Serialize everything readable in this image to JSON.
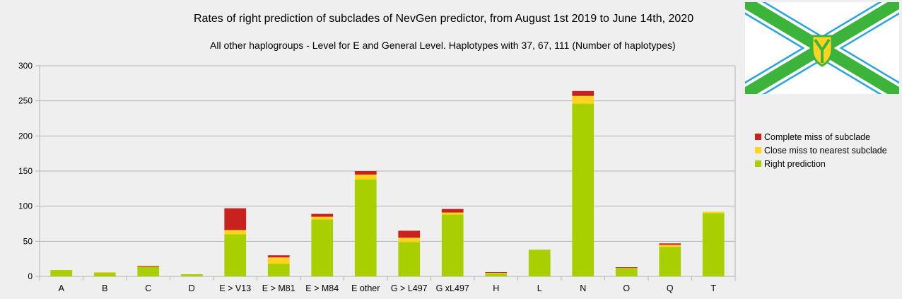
{
  "title": "Rates of right prediction of subclades of NevGen predictor, from August 1st 2019 to June 14th, 2020",
  "subtitle": "All other haplogroups - Level for E and General Level. Haplotypes with 37, 67, 111 (Number of haplotypes)",
  "colors": {
    "right": "#a9cf00",
    "close": "#ffd320",
    "miss": "#c9211e",
    "flag_green": "#3cb43c",
    "flag_blue": "#29a3e6",
    "flag_yellow": "#ffd320"
  },
  "chart_data": {
    "type": "bar",
    "stacked": true,
    "categories": [
      "A",
      "B",
      "C",
      "D",
      "E > V13",
      "E > M81",
      "E > M84",
      "E other",
      "G > L497",
      "G xL497",
      "H",
      "L",
      "N",
      "O",
      "Q",
      "T"
    ],
    "series": [
      {
        "name": "Right prediction",
        "values": [
          9,
          5,
          14,
          3,
          60,
          18,
          81,
          138,
          49,
          88,
          4,
          38,
          246,
          12,
          42,
          90
        ]
      },
      {
        "name": "Close miss to nearest subclade",
        "values": [
          0,
          1,
          0,
          0,
          6,
          9,
          4,
          7,
          6,
          3,
          1,
          0,
          11,
          0,
          3,
          2
        ]
      },
      {
        "name": "Complete miss of subclade",
        "values": [
          0,
          0,
          1,
          0,
          31,
          3,
          4,
          5,
          10,
          5,
          1,
          0,
          7,
          1,
          2,
          0
        ]
      }
    ],
    "yticks": [
      0,
      50,
      100,
      150,
      200,
      250,
      300
    ],
    "ylim": [
      0,
      300
    ],
    "grid": true,
    "legend": "right",
    "legend_order": [
      "Complete miss of subclade",
      "Close miss to nearest subclade",
      "Right prediction"
    ]
  }
}
